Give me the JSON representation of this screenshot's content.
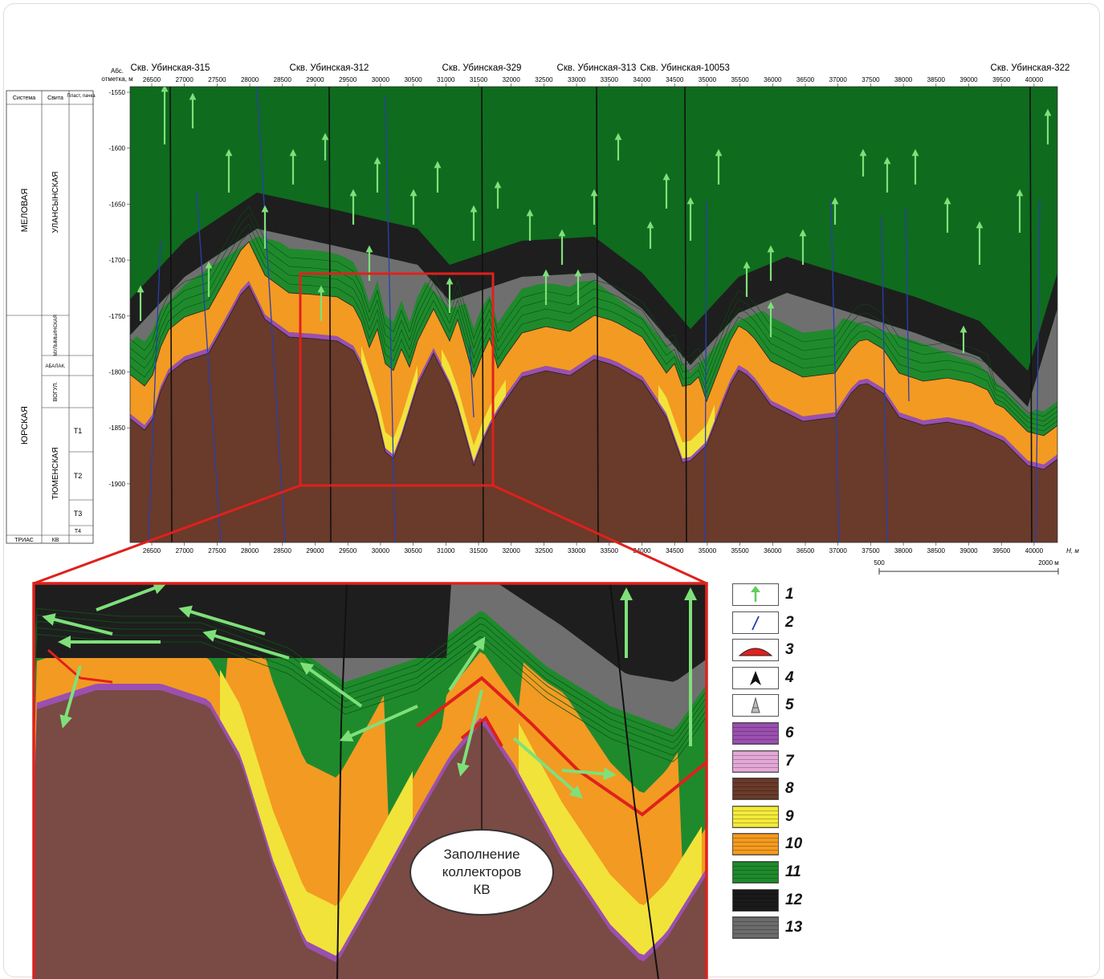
{
  "header": {
    "abs_label_1": "Абс.",
    "abs_label_2": "отметка, м",
    "wells": [
      "Скв. Убинская-315",
      "Скв. Убинская-312",
      "Скв. Убинская-329",
      "Скв. Убинская-313",
      "Скв. Убинская-10053",
      "Скв. Убинская-322"
    ]
  },
  "x_axis": {
    "ticks": [
      "26500",
      "27000",
      "27500",
      "28000",
      "28500",
      "29000",
      "29500",
      "30000",
      "30500",
      "31000",
      "31500",
      "32000",
      "32500",
      "33000",
      "33500",
      "34000",
      "34500",
      "35000",
      "35500",
      "36000",
      "36500",
      "37000",
      "37500",
      "38000",
      "38500",
      "39000",
      "39500",
      "40000"
    ],
    "unit": "Н, м",
    "scale_start": "500",
    "scale_end": "2000 м"
  },
  "y_axis": {
    "ticks": [
      "-1550",
      "-1600",
      "-1650",
      "-1700",
      "-1750",
      "-1800",
      "-1850",
      "-1900"
    ]
  },
  "strat": {
    "col_headers": [
      "Система",
      "Свита",
      "Пласт, пачка"
    ],
    "systems": [
      "МЕЛОВАЯ",
      "ЮРСКАЯ",
      "ТРИАС"
    ],
    "svitas": [
      "УЛАНСЫНСКАЯ",
      "МУЛЫМЬИНСКАЯ",
      "АБАЛАК.",
      "ВОГУЛ.",
      "ТЮМЕНСКАЯ",
      "КВ"
    ],
    "plasts": [
      "T1",
      "T2",
      "T3",
      "T4"
    ]
  },
  "callout": {
    "text": "Заполнение\nколлекторов\nКВ"
  },
  "legend": {
    "numbers": [
      "1",
      "2",
      "3",
      "4",
      "5",
      "6",
      "7",
      "8",
      "9",
      "10",
      "11",
      "12",
      "13"
    ],
    "swatches": [
      "green-arrow-icon",
      "blue-line-icon",
      "red-dome-icon",
      "black-arrowhead-icon",
      "well-derrick-icon",
      "#9b4fb0",
      "#e4a8d8",
      "#6a3a2a",
      "#f4ea3a",
      "#f49a1e",
      "#1f8a2c",
      "#1a1a1a",
      "#6b6b6b"
    ]
  },
  "colors": {
    "green_dark": "#0f6b1e",
    "green": "#1f8a2c",
    "black": "#1e1e1e",
    "gray": "#6f6f6f",
    "orange": "#f39a22",
    "yellow": "#f1e33a",
    "purple": "#9b4fb0",
    "brown": "#6a3a2a",
    "red": "#e0201c"
  }
}
